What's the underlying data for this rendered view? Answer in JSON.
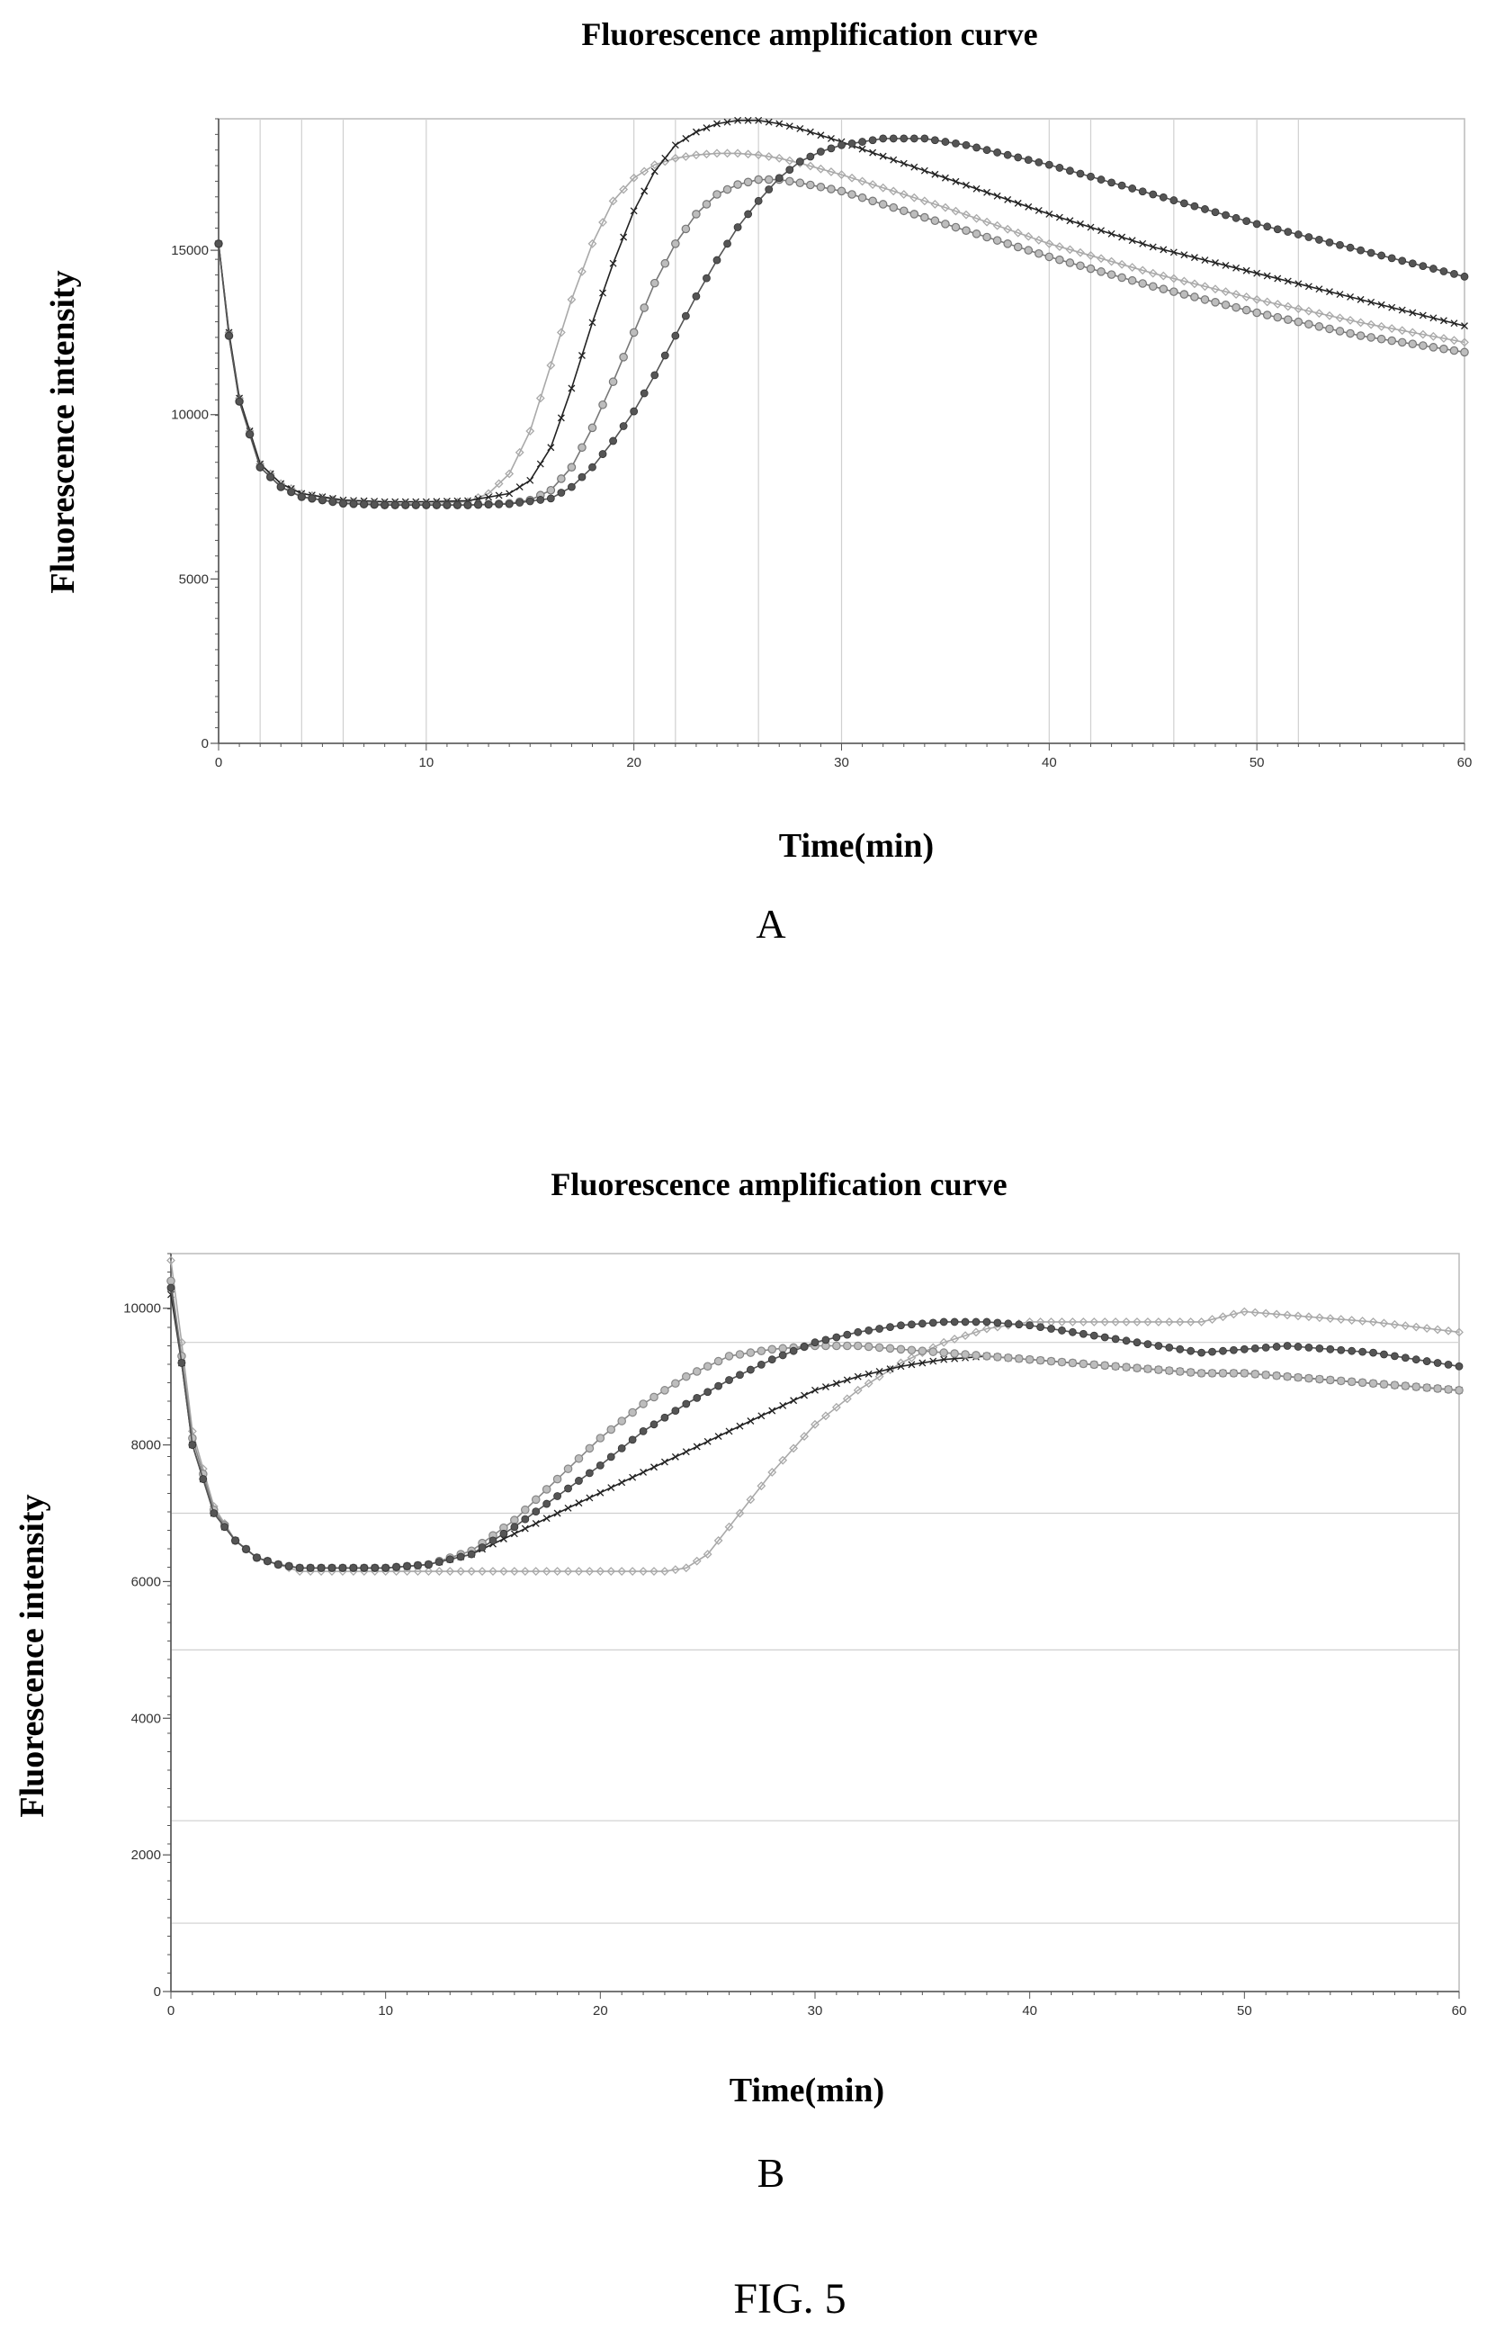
{
  "figure_label": "FIG. 5",
  "chart_data": [
    {
      "type": "line",
      "panel": "A",
      "title": "Fluorescence amplification curve",
      "xlabel": "Time(min)",
      "ylabel": "Fluorescence intensity",
      "xlim": [
        0,
        60
      ],
      "ylim": [
        0,
        19000
      ],
      "xticks": [
        0,
        10,
        20,
        30,
        40,
        50,
        60
      ],
      "yticks": [
        0,
        5000,
        10000,
        15000
      ],
      "ytick_labels": [
        "0",
        "5000",
        "10000",
        "15000"
      ],
      "grid_x": [
        2,
        4,
        6,
        10,
        20,
        22,
        26,
        30,
        40,
        42,
        46,
        50,
        52
      ],
      "grid_y": [],
      "legend": "none",
      "series": [
        {
          "marker": "diamond",
          "color": "#a9a9a9",
          "x": [
            0,
            0.5,
            1,
            2,
            3,
            4,
            6,
            8,
            10,
            12,
            13,
            14,
            15,
            16,
            17,
            18,
            19,
            20,
            21,
            22,
            23,
            24,
            25,
            26,
            27,
            28,
            30,
            35,
            40,
            45,
            50,
            55,
            60
          ],
          "y": [
            15200,
            12500,
            10500,
            8500,
            7900,
            7600,
            7350,
            7300,
            7300,
            7350,
            7600,
            8200,
            9500,
            11500,
            13500,
            15200,
            16500,
            17200,
            17600,
            17800,
            17900,
            17950,
            17950,
            17900,
            17800,
            17650,
            17300,
            16300,
            15200,
            14300,
            13500,
            12800,
            12200
          ]
        },
        {
          "marker": "x",
          "color": "#222222",
          "x": [
            0,
            0.5,
            1,
            2,
            3,
            4,
            6,
            8,
            10,
            12,
            14,
            15,
            16,
            17,
            18,
            19,
            20,
            21,
            22,
            23,
            24,
            25,
            26,
            27,
            28,
            30,
            35,
            40,
            45,
            50,
            55,
            60
          ],
          "y": [
            15200,
            12500,
            10500,
            8500,
            7900,
            7600,
            7400,
            7350,
            7350,
            7380,
            7600,
            8000,
            9000,
            10800,
            12800,
            14600,
            16200,
            17400,
            18200,
            18600,
            18850,
            18950,
            18950,
            18850,
            18700,
            18300,
            17200,
            16100,
            15100,
            14300,
            13500,
            12700
          ]
        },
        {
          "marker": "circle",
          "color": "#777777",
          "x": [
            0,
            0.5,
            1,
            2,
            3,
            4,
            6,
            8,
            10,
            12,
            14,
            15,
            16,
            17,
            18,
            19,
            20,
            21,
            22,
            23,
            24,
            25,
            26,
            27,
            28,
            30,
            35,
            40,
            45,
            50,
            55,
            60
          ],
          "y": [
            15200,
            12400,
            10400,
            8400,
            7800,
            7500,
            7300,
            7250,
            7250,
            7250,
            7300,
            7400,
            7700,
            8400,
            9600,
            11000,
            12500,
            14000,
            15200,
            16100,
            16700,
            17000,
            17150,
            17150,
            17050,
            16800,
            15800,
            14800,
            13900,
            13100,
            12400,
            11900
          ]
        },
        {
          "marker": "circle-filled",
          "color": "#555555",
          "x": [
            0,
            0.5,
            1,
            2,
            3,
            4,
            6,
            8,
            10,
            12,
            14,
            16,
            17,
            18,
            19,
            20,
            21,
            22,
            23,
            24,
            25,
            26,
            27,
            28,
            29,
            30,
            32,
            34,
            36,
            40,
            45,
            50,
            55,
            60
          ],
          "y": [
            15200,
            12400,
            10400,
            8400,
            7800,
            7500,
            7300,
            7250,
            7250,
            7250,
            7280,
            7450,
            7800,
            8400,
            9200,
            10100,
            11200,
            12400,
            13600,
            14700,
            15700,
            16500,
            17200,
            17700,
            18000,
            18200,
            18400,
            18400,
            18200,
            17600,
            16700,
            15800,
            15000,
            14200
          ]
        }
      ]
    },
    {
      "type": "line",
      "panel": "B",
      "title": "Fluorescence amplification curve",
      "xlabel": "Time(min)",
      "ylabel": "Fluorescence intensity",
      "xlim": [
        0,
        60
      ],
      "ylim": [
        0,
        10800
      ],
      "xticks": [
        0,
        10,
        20,
        30,
        40,
        50,
        60
      ],
      "yticks": [
        0,
        2000,
        4000,
        6000,
        8000,
        10000
      ],
      "ytick_labels": [
        "0",
        "2000",
        "4000",
        "6000",
        "8000",
        "10000"
      ],
      "grid_x": [],
      "grid_y": [
        1000,
        2500,
        5000,
        7000,
        9500
      ],
      "legend": "none",
      "series": [
        {
          "marker": "diamond",
          "color": "#a9a9a9",
          "x": [
            0,
            0.5,
            1,
            2,
            3,
            4,
            5,
            6,
            8,
            10,
            12,
            14,
            16,
            18,
            20,
            22,
            23,
            24,
            25,
            26,
            27,
            28,
            30,
            32,
            34,
            36,
            38,
            40,
            44,
            48,
            50,
            52,
            56,
            60
          ],
          "y": [
            10700,
            9500,
            8200,
            7100,
            6600,
            6350,
            6250,
            6150,
            6150,
            6150,
            6150,
            6150,
            6150,
            6150,
            6150,
            6150,
            6150,
            6200,
            6400,
            6800,
            7200,
            7600,
            8300,
            8800,
            9200,
            9500,
            9700,
            9800,
            9800,
            9800,
            9950,
            9900,
            9800,
            9650
          ]
        },
        {
          "marker": "x",
          "color": "#222222",
          "x": [
            0,
            0.5,
            1,
            2,
            3,
            4,
            5,
            6,
            8,
            10,
            12,
            14,
            16,
            18,
            20,
            22,
            24,
            26,
            28,
            30,
            32,
            34,
            36,
            38,
            40,
            44,
            48,
            50,
            52,
            56,
            60
          ],
          "y": [
            10200,
            9200,
            8000,
            7000,
            6600,
            6350,
            6250,
            6200,
            6200,
            6200,
            6250,
            6400,
            6700,
            7000,
            7300,
            7600,
            7900,
            8200,
            8500,
            8800,
            9000,
            9150,
            9250,
            9300,
            9250,
            9150,
            9050,
            9050,
            9000,
            8900,
            8800
          ]
        },
        {
          "marker": "circle",
          "color": "#888888",
          "x": [
            0,
            0.5,
            1,
            2,
            3,
            4,
            5,
            6,
            8,
            10,
            12,
            14,
            16,
            18,
            20,
            22,
            24,
            26,
            28,
            30,
            32,
            34,
            36,
            38,
            40,
            44,
            48,
            50,
            52,
            56,
            60
          ],
          "y": [
            10400,
            9300,
            8100,
            7050,
            6600,
            6350,
            6250,
            6200,
            6200,
            6200,
            6250,
            6450,
            6900,
            7500,
            8100,
            8600,
            9000,
            9300,
            9400,
            9450,
            9450,
            9400,
            9350,
            9300,
            9250,
            9150,
            9050,
            9050,
            9000,
            8900,
            8800
          ]
        },
        {
          "marker": "circle-filled",
          "color": "#555555",
          "x": [
            0,
            0.5,
            1,
            2,
            3,
            4,
            5,
            6,
            8,
            10,
            12,
            14,
            16,
            18,
            20,
            22,
            24,
            26,
            28,
            30,
            32,
            34,
            36,
            38,
            40,
            44,
            48,
            50,
            52,
            56,
            60
          ],
          "y": [
            10300,
            9200,
            8000,
            7000,
            6600,
            6350,
            6250,
            6200,
            6200,
            6200,
            6250,
            6400,
            6800,
            7250,
            7700,
            8200,
            8600,
            8950,
            9250,
            9500,
            9650,
            9750,
            9800,
            9800,
            9750,
            9550,
            9350,
            9400,
            9450,
            9350,
            9150
          ]
        }
      ]
    }
  ]
}
